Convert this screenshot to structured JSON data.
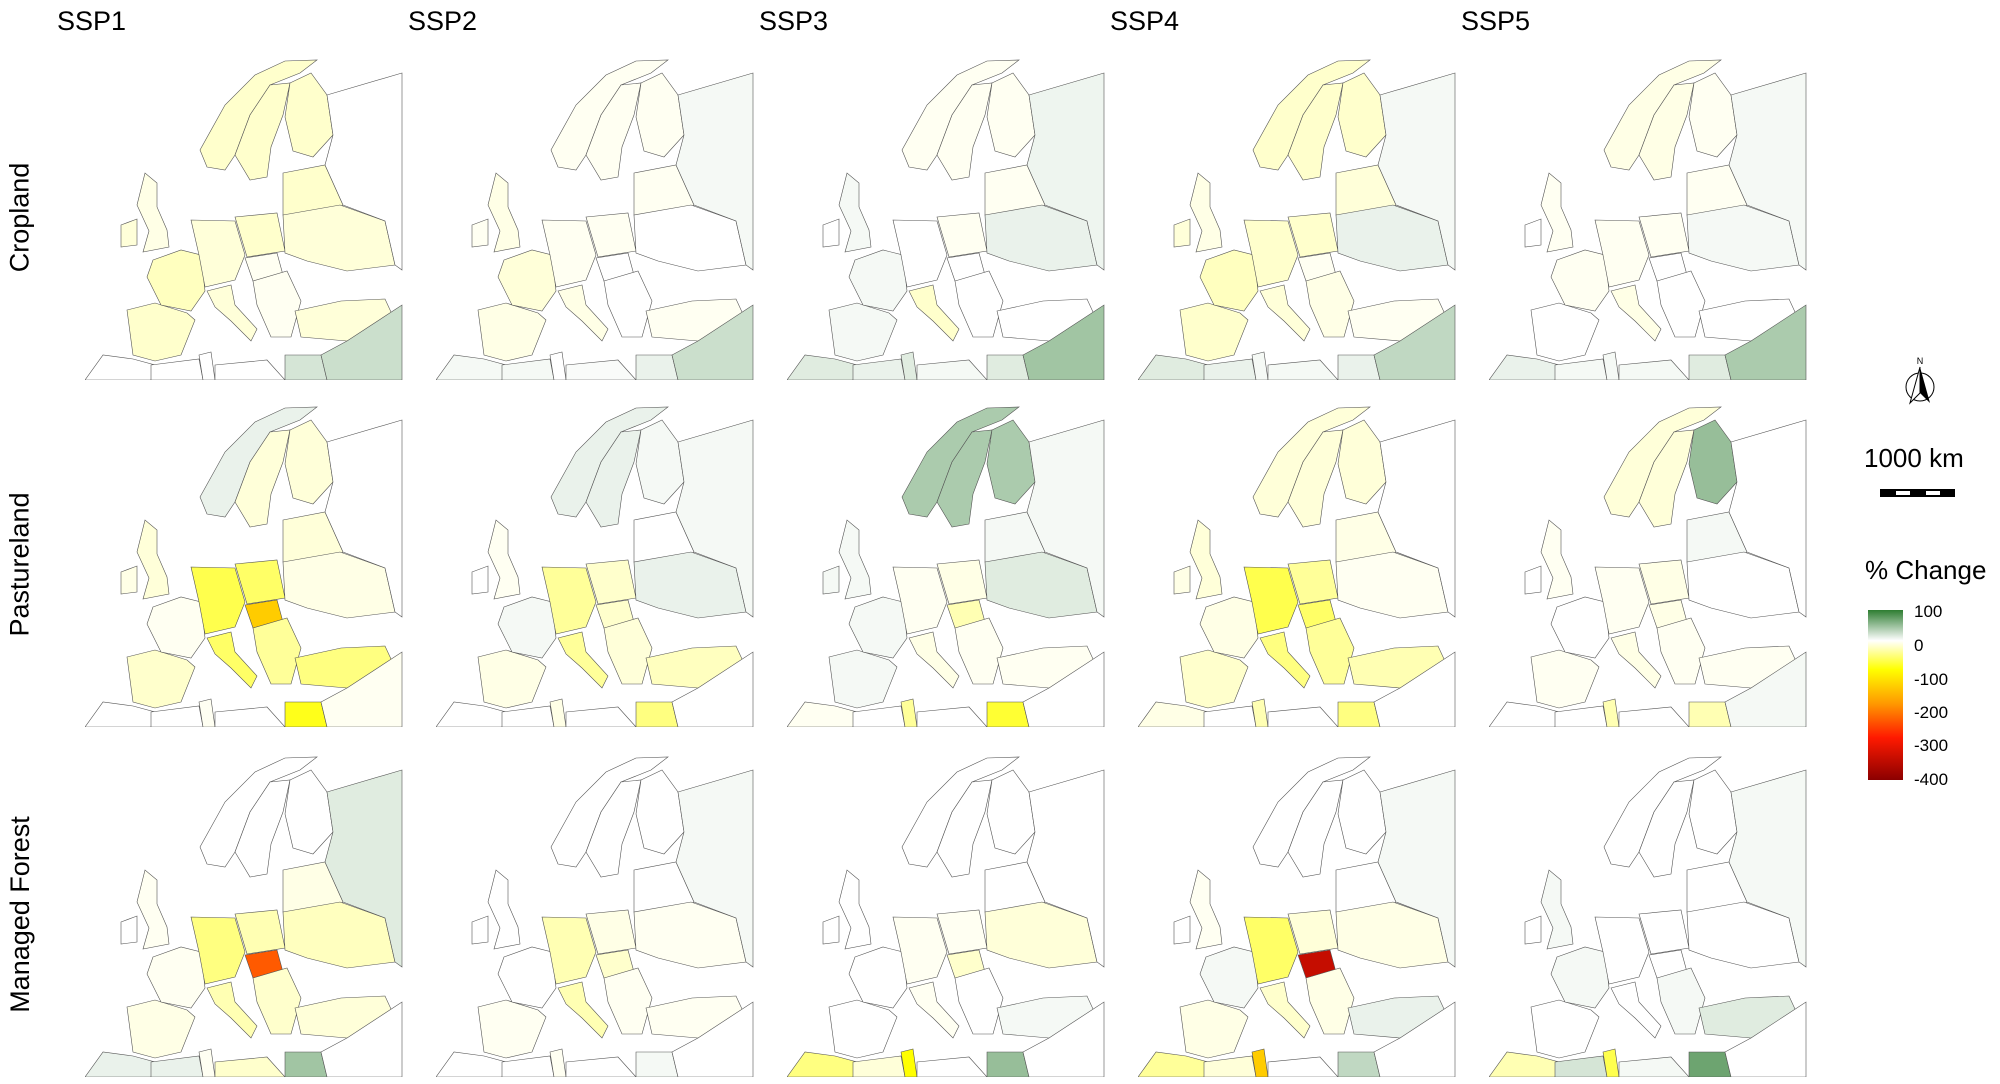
{
  "columns": [
    "SSP1",
    "SSP2",
    "SSP3",
    "SSP4",
    "SSP5"
  ],
  "rows": [
    "Cropland",
    "Pastureland",
    "Managed Forest"
  ],
  "legend": {
    "north_label": "N",
    "scale_label": "1000 km",
    "title": "% Change",
    "ticks": [
      "100",
      "0",
      "-100",
      "-200",
      "-300",
      "-400"
    ],
    "range": [
      -400,
      100
    ],
    "colors": {
      "100": "#2e7d32",
      "0": "#ffffff",
      "-100": "#ffff00",
      "-200": "#ff9900",
      "-300": "#ff1a00",
      "-400": "#8b0000"
    }
  },
  "map_data": {
    "units": "% change",
    "regions": [
      "norway",
      "sweden",
      "finland",
      "uk",
      "ireland",
      "iberia",
      "france",
      "central",
      "poland",
      "baltics",
      "ukraine",
      "russia",
      "hungary",
      "italy",
      "balkans",
      "turkey",
      "morocco",
      "algeria",
      "tunisia",
      "libya",
      "egypt",
      "middleeast"
    ],
    "panels": [
      [
        {
          "norway": -20,
          "sweden": -20,
          "finland": -20,
          "uk": -10,
          "ireland": -15,
          "iberia": -20,
          "france": -25,
          "central": -15,
          "poland": -20,
          "baltics": -20,
          "ukraine": -15,
          "russia": 0,
          "hungary": -5,
          "italy": -15,
          "balkans": -5,
          "turkey": -15,
          "morocco": 0,
          "algeria": 0,
          "tunisia": 0,
          "libya": 0,
          "egypt": 20,
          "middleeast": 25
        },
        {
          "norway": -5,
          "sweden": -5,
          "finland": -5,
          "uk": -10,
          "ireland": -5,
          "iberia": -10,
          "france": -15,
          "central": -5,
          "poland": -5,
          "baltics": -5,
          "ukraine": 0,
          "russia": 5,
          "hungary": 0,
          "italy": -10,
          "balkans": 0,
          "turkey": -5,
          "morocco": 5,
          "algeria": 5,
          "tunisia": 0,
          "libya": 3,
          "egypt": 10,
          "middleeast": 25
        },
        {
          "norway": -5,
          "sweden": -5,
          "finland": -5,
          "uk": 5,
          "ireland": 0,
          "iberia": 5,
          "france": 5,
          "central": 0,
          "poland": -5,
          "baltics": -5,
          "ukraine": 10,
          "russia": 8,
          "hungary": 0,
          "italy": -20,
          "balkans": 0,
          "turkey": 0,
          "morocco": 15,
          "algeria": 10,
          "tunisia": 15,
          "libya": 5,
          "egypt": 15,
          "middleeast": 45
        },
        {
          "norway": -20,
          "sweden": -20,
          "finland": -20,
          "uk": -10,
          "ireland": -15,
          "iberia": -20,
          "france": -25,
          "central": -20,
          "poland": -20,
          "baltics": -15,
          "ukraine": 10,
          "russia": 5,
          "hungary": -5,
          "italy": -15,
          "balkans": -10,
          "turkey": -5,
          "morocco": 15,
          "algeria": 10,
          "tunisia": 5,
          "libya": 5,
          "egypt": 10,
          "middleeast": 30
        },
        {
          "norway": -10,
          "sweden": -10,
          "finland": -5,
          "uk": -5,
          "ireland": 0,
          "iberia": 0,
          "france": -5,
          "central": -5,
          "poland": -5,
          "baltics": -5,
          "ukraine": 5,
          "russia": 5,
          "hungary": 0,
          "italy": -10,
          "balkans": 0,
          "turkey": 0,
          "morocco": 10,
          "algeria": 5,
          "tunisia": 5,
          "libya": 5,
          "egypt": 15,
          "middleeast": 40
        }
      ],
      [
        {
          "norway": 10,
          "sweden": -15,
          "finland": -15,
          "uk": -15,
          "ireland": -10,
          "iberia": -20,
          "france": -5,
          "central": -70,
          "poland": -60,
          "baltics": -15,
          "ukraine": -10,
          "russia": 0,
          "hungary": -150,
          "italy": -60,
          "balkans": -40,
          "turkey": -50,
          "morocco": 0,
          "algeria": 0,
          "tunisia": -5,
          "libya": 0,
          "egypt": -90,
          "middleeast": -5
        },
        {
          "norway": 10,
          "sweden": 10,
          "finland": 5,
          "uk": -5,
          "ireland": 0,
          "iberia": -10,
          "france": 5,
          "central": -40,
          "poland": -20,
          "baltics": 0,
          "ukraine": 10,
          "russia": 5,
          "hungary": -20,
          "italy": -40,
          "balkans": -15,
          "turkey": -25,
          "morocco": 0,
          "algeria": 0,
          "tunisia": -10,
          "libya": 0,
          "egypt": -50,
          "middleeast": 0
        },
        {
          "norway": 40,
          "sweden": 40,
          "finland": 40,
          "uk": 5,
          "ireland": 5,
          "iberia": 5,
          "france": 5,
          "central": -5,
          "poland": -10,
          "baltics": 5,
          "ukraine": 15,
          "russia": 5,
          "hungary": -30,
          "italy": -10,
          "balkans": -5,
          "turkey": -5,
          "morocco": -5,
          "algeria": 0,
          "tunisia": -40,
          "libya": 0,
          "egypt": -80,
          "middleeast": 0
        },
        {
          "norway": -15,
          "sweden": -15,
          "finland": -15,
          "uk": -15,
          "ireland": -10,
          "iberia": -20,
          "france": -10,
          "central": -70,
          "poland": -40,
          "baltics": -10,
          "ukraine": -5,
          "russia": 0,
          "hungary": -60,
          "italy": -50,
          "balkans": -40,
          "turkey": -30,
          "morocco": -10,
          "algeria": 0,
          "tunisia": -30,
          "libya": 0,
          "egypt": -50,
          "middleeast": 0
        },
        {
          "norway": -15,
          "sweden": -15,
          "finland": 50,
          "uk": -5,
          "ireland": 0,
          "iberia": -5,
          "france": 0,
          "central": -5,
          "poland": -10,
          "baltics": 5,
          "ukraine": 0,
          "russia": 0,
          "hungary": -10,
          "italy": -10,
          "balkans": -5,
          "turkey": -5,
          "morocco": 0,
          "algeria": 0,
          "tunisia": -30,
          "libya": 0,
          "egypt": -30,
          "middleeast": 5
        }
      ],
      [
        {
          "norway": 0,
          "sweden": 0,
          "finland": 0,
          "uk": -5,
          "ireland": 0,
          "iberia": -10,
          "france": -5,
          "central": -50,
          "poland": -30,
          "baltics": -10,
          "ukraine": -25,
          "russia": 15,
          "hungary": -250,
          "italy": -30,
          "balkans": -20,
          "turkey": -15,
          "morocco": 10,
          "algeria": 10,
          "tunisia": -5,
          "libya": -20,
          "egypt": 45,
          "middleeast": 0
        },
        {
          "norway": 0,
          "sweden": 0,
          "finland": 0,
          "uk": 0,
          "ireland": 0,
          "iberia": -5,
          "france": 0,
          "central": -30,
          "poland": -10,
          "baltics": 0,
          "ukraine": -5,
          "russia": 5,
          "hungary": -20,
          "italy": -30,
          "balkans": -5,
          "turkey": -5,
          "morocco": 0,
          "algeria": 0,
          "tunisia": -5,
          "libya": 0,
          "egypt": 5,
          "middleeast": 0
        },
        {
          "norway": 0,
          "sweden": 0,
          "finland": 0,
          "uk": 0,
          "ireland": 0,
          "iberia": 0,
          "france": 0,
          "central": -5,
          "poland": -5,
          "baltics": 0,
          "ukraine": -15,
          "russia": 0,
          "hungary": -20,
          "italy": -5,
          "balkans": 0,
          "turkey": 5,
          "morocco": -50,
          "algeria": -15,
          "tunisia": -100,
          "libya": 0,
          "egypt": 50,
          "middleeast": 0
        },
        {
          "norway": 0,
          "sweden": 0,
          "finland": 0,
          "uk": -5,
          "ireland": 0,
          "iberia": -10,
          "france": 5,
          "central": -60,
          "poland": -15,
          "baltics": 0,
          "ukraine": -10,
          "russia": 5,
          "hungary": -350,
          "italy": -20,
          "balkans": -10,
          "turkey": 10,
          "morocco": -40,
          "algeria": -15,
          "tunisia": -150,
          "libya": 0,
          "egypt": 30,
          "middleeast": 0
        },
        {
          "norway": 0,
          "sweden": 0,
          "finland": 0,
          "uk": 5,
          "ireland": 0,
          "iberia": 0,
          "france": 5,
          "central": 0,
          "poland": 0,
          "baltics": 0,
          "ukraine": 0,
          "russia": 5,
          "hungary": 0,
          "italy": 0,
          "balkans": 5,
          "turkey": 15,
          "morocco": -30,
          "algeria": 20,
          "tunisia": -70,
          "libya": 5,
          "egypt": 70,
          "middleeast": 0
        }
      ]
    ]
  }
}
